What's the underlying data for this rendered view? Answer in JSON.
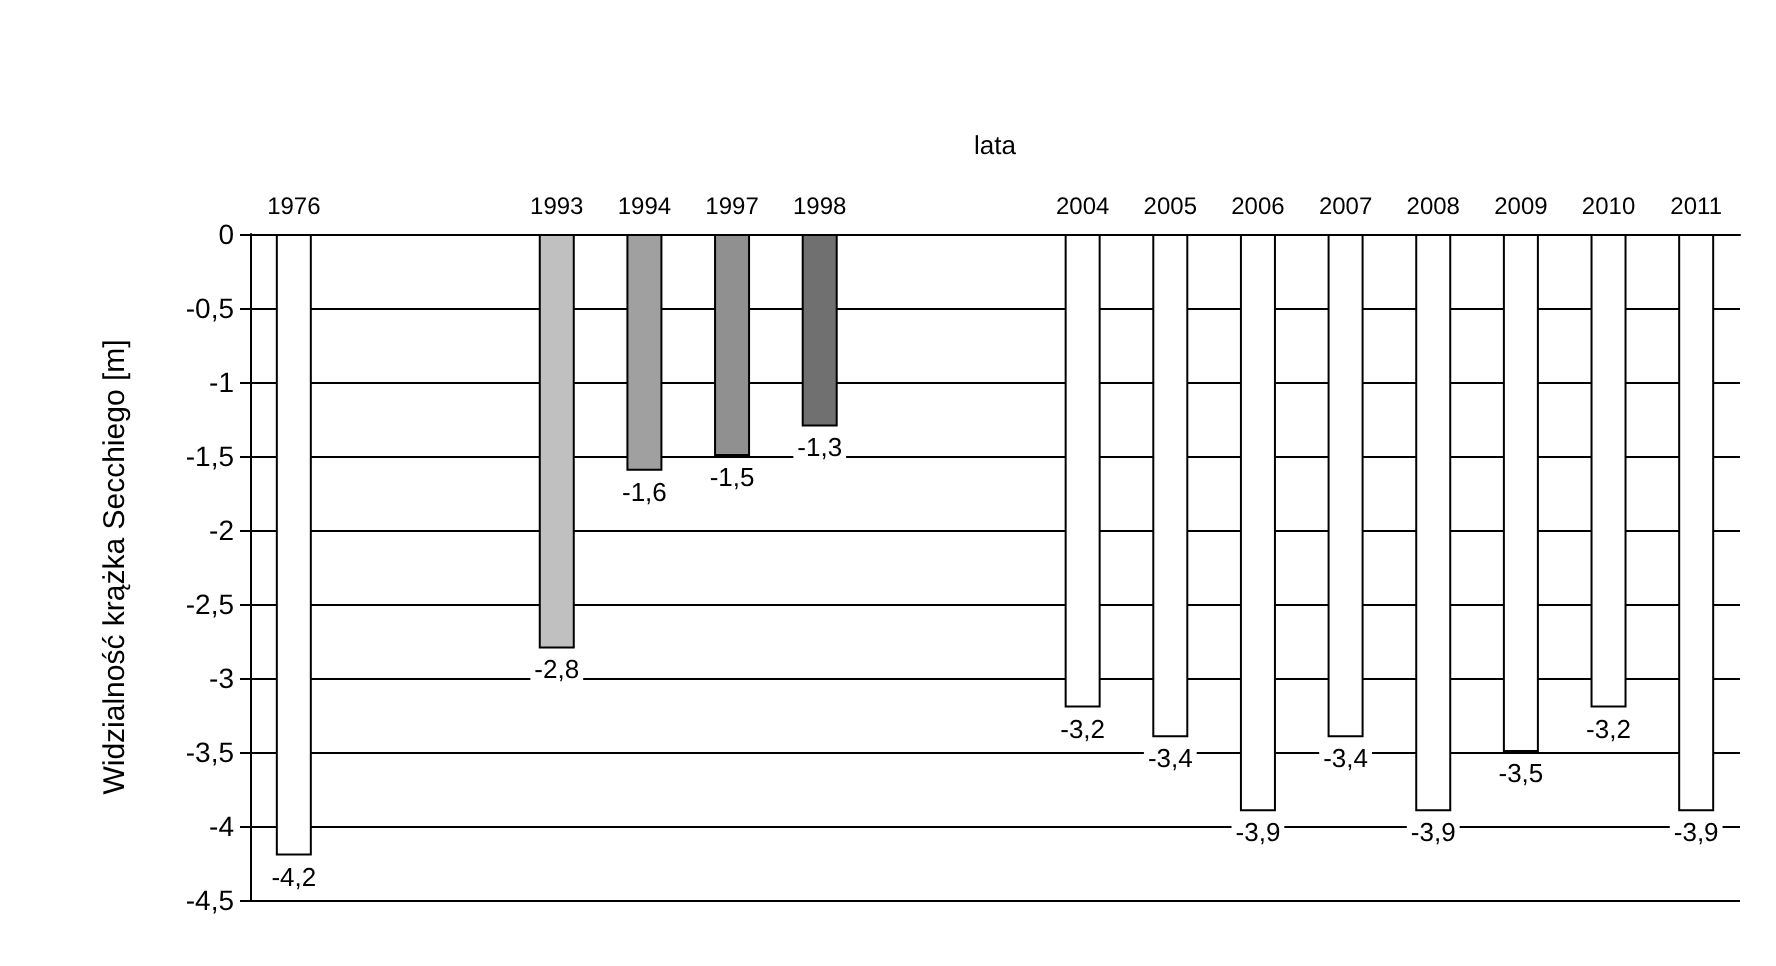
{
  "chart_data": {
    "type": "bar",
    "xlabel": "lata",
    "ylabel": "Widzialność krążka Secchiego [m]",
    "categories": [
      "1976",
      null,
      null,
      "1993",
      "1994",
      "1997",
      "1998",
      null,
      null,
      "2004",
      "2005",
      "2006",
      "2007",
      "2008",
      "2009",
      "2010",
      "2011"
    ],
    "values": [
      -4.2,
      null,
      null,
      -2.8,
      -1.6,
      -1.5,
      -1.3,
      null,
      null,
      -3.2,
      -3.4,
      -3.9,
      -3.4,
      -3.9,
      -3.5,
      -3.2,
      -3.9
    ],
    "colors": [
      "#ffffff",
      null,
      null,
      "#c0c0c0",
      "#a0a0a0",
      "#909090",
      "#707070",
      null,
      null,
      "#ffffff",
      "#ffffff",
      "#ffffff",
      "#ffffff",
      "#ffffff",
      "#ffffff",
      "#ffffff",
      "#ffffff"
    ],
    "value_labels": [
      "-4,2",
      null,
      null,
      "-2,8",
      "-1,6",
      "-1,5",
      "-1,3",
      null,
      null,
      "-3,2",
      "-3,4",
      "-3,9",
      "-3,4",
      "-3,9",
      "-3,5",
      "-3,2",
      "-3,9"
    ],
    "ylim": [
      -4.5,
      0
    ],
    "yticks": [
      {
        "value": 0,
        "label": "0"
      },
      {
        "value": -0.5,
        "label": "-0,5"
      },
      {
        "value": -1,
        "label": "-1"
      },
      {
        "value": -1.5,
        "label": "-1,5"
      },
      {
        "value": -2,
        "label": "-2"
      },
      {
        "value": -2.5,
        "label": "-2,5"
      },
      {
        "value": -3,
        "label": "-3"
      },
      {
        "value": -3.5,
        "label": "-3,5"
      },
      {
        "value": -4,
        "label": "-4"
      },
      {
        "value": -4.5,
        "label": "-4,5"
      }
    ],
    "grid": "y"
  }
}
